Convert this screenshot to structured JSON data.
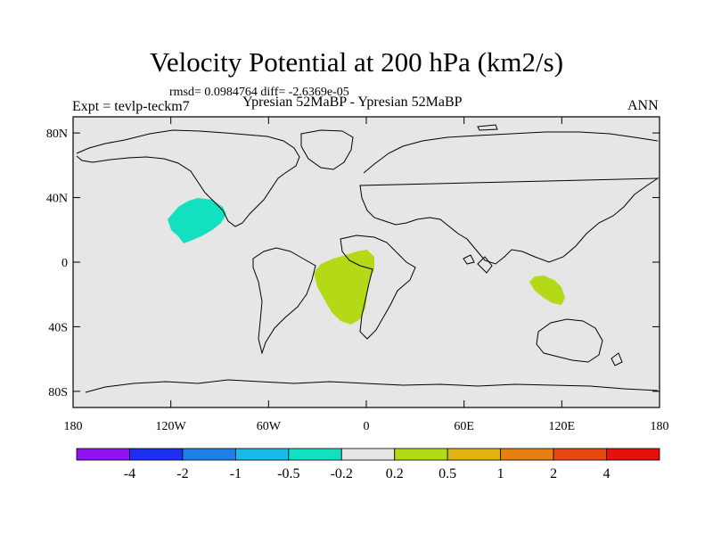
{
  "title": "Velocity Potential at 200 hPa (km2/s)",
  "stats": "rmsd= 0.0984764 diff= -2.6369e-05",
  "center_label": "Ypresian  52MaBP - Ypresian  52MaBP",
  "left_label": "Expt = tevlp-teckm7",
  "right_label": "ANN",
  "axes": {
    "y_ticks": [
      {
        "label": "80N",
        "lat": 80
      },
      {
        "label": "40N",
        "lat": 40
      },
      {
        "label": "0",
        "lat": 0
      },
      {
        "label": "40S",
        "lat": -40
      },
      {
        "label": "80S",
        "lat": -80
      }
    ],
    "x_ticks": [
      {
        "label": "180",
        "lon": -180
      },
      {
        "label": "120W",
        "lon": -120
      },
      {
        "label": "60W",
        "lon": -60
      },
      {
        "label": "0",
        "lon": 0
      },
      {
        "label": "60E",
        "lon": 60
      },
      {
        "label": "120E",
        "lon": 120
      },
      {
        "label": "180",
        "lon": 180
      }
    ]
  },
  "colorbar": {
    "colors": [
      "#8f12ef",
      "#1f2ff0",
      "#1f7fe8",
      "#19b9e8",
      "#12e0c0",
      "#e6e6e6",
      "#b4d917",
      "#dfb40f",
      "#e87f12",
      "#e84910",
      "#e80f0f"
    ],
    "labels": [
      "-4",
      "-2",
      "-1",
      "-0.5",
      "-0.2",
      "0.2",
      "0.5",
      "1",
      "2",
      "4"
    ]
  },
  "colors": {
    "background": "#e6e6e6",
    "positive_anomaly": "#b4d917",
    "negative_anomaly": "#12e0c0"
  }
}
